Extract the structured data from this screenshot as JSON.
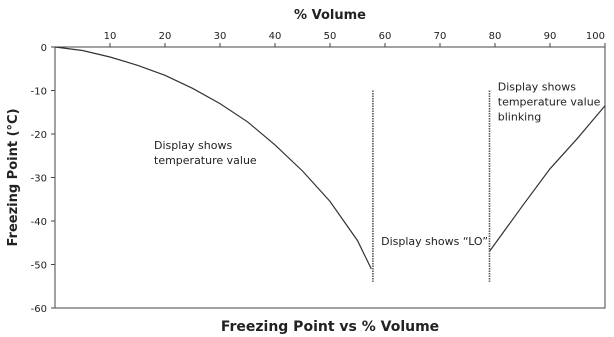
{
  "chart_data": {
    "type": "line",
    "title": "Freezing Point vs % Volume",
    "xlabel": "% Volume",
    "ylabel": "Freezing Point (°C)",
    "xlim": [
      0,
      100
    ],
    "ylim": [
      -60,
      0
    ],
    "x_ticks": [
      10,
      20,
      30,
      40,
      50,
      60,
      70,
      80,
      90,
      100
    ],
    "y_ticks": [
      0,
      -10,
      -20,
      -30,
      -40,
      -50,
      -60
    ],
    "grid": false,
    "series": [
      {
        "x": [
          0,
          5,
          10,
          15,
          20,
          25,
          30,
          35,
          40,
          45,
          50,
          55,
          57.5
        ],
        "y": [
          0,
          -0.8,
          -2.3,
          -4.2,
          -6.5,
          -9.5,
          -13,
          -17.2,
          -22.5,
          -28.5,
          -35.5,
          -44.5,
          -51
        ],
        "color": "#333333"
      },
      {
        "x": [
          79,
          85,
          90,
          95,
          100
        ],
        "y": [
          -47,
          -36.5,
          -28,
          -21,
          -13.5
        ],
        "color": "#333333"
      }
    ],
    "vlines": [
      {
        "x": 57.8,
        "y_from": -10,
        "y_to": -54
      },
      {
        "x": 79,
        "y_from": -10,
        "y_to": -54
      }
    ],
    "annotations": [
      {
        "lines": [
          "Display shows",
          "temperature value"
        ],
        "x": 18,
        "y": -23.5
      },
      {
        "lines": [
          "Display shows “LO”"
        ],
        "x": 59.3,
        "y": -45.5
      },
      {
        "lines": [
          "Display shows",
          "temperature value",
          "blinking"
        ],
        "x": 80.5,
        "y": -10
      }
    ]
  }
}
